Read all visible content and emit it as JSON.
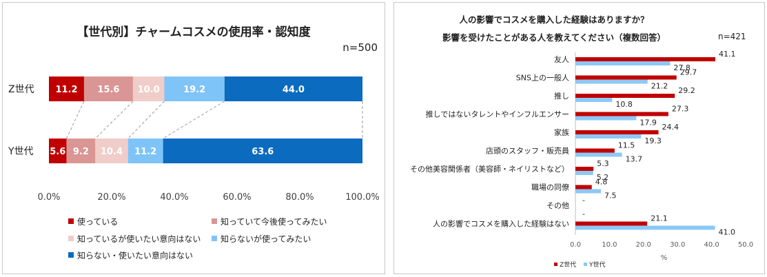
{
  "colors": {
    "z_series": "#C00000",
    "y_series": "#8DC8F5",
    "segments": [
      "#C00000",
      "#DA9694",
      "#F0CDC9",
      "#7FC4F8",
      "#0B6BBF"
    ]
  },
  "left": {
    "title": "【世代別】チャームコスメの使用率・認知度",
    "n_label": "n=500"
  },
  "right": {
    "title_line1": "人の影響でコスメを購入した経験はありますか？",
    "title_line2": "影響を受けたことがある人を教えてください（複数回答）",
    "n_label": "n=421"
  },
  "chart_data": [
    {
      "type": "bar",
      "orientation": "horizontal",
      "stacked": true,
      "title": "【世代別】チャームコスメの使用率・認知度",
      "categories": [
        "Z世代",
        "Y世代"
      ],
      "series": [
        {
          "name": "使っている",
          "values": [
            11.2,
            5.6
          ]
        },
        {
          "name": "知っていて今後使ってみたい",
          "values": [
            15.6,
            9.2
          ]
        },
        {
          "name": "知っているが使いたい意向はない",
          "values": [
            10.0,
            10.4
          ]
        },
        {
          "name": "知らないが使ってみたい",
          "values": [
            19.2,
            11.2
          ]
        },
        {
          "name": "知らない・使いたい意向はない",
          "values": [
            44.0,
            63.6
          ]
        }
      ],
      "xlim": [
        0,
        100
      ],
      "xticks": [
        "0.0%",
        "20.0%",
        "40.0%",
        "60.0%",
        "80.0%",
        "100.0%"
      ],
      "legend_position": "bottom"
    },
    {
      "type": "bar",
      "orientation": "horizontal",
      "title": "人の影響でコスメを購入した経験はありますか？ 影響を受けたことがある人を教えてください（複数回答）",
      "categories": [
        "友人",
        "SNS上の一般人",
        "推し",
        "推しではないタレントやインフルエンサー",
        "家族",
        "店頭のスタッフ・販売員",
        "その他美容関係者（美容師・ネイリストなど）",
        "職場の同僚",
        "その他",
        "人の影響でコスメを購入した経験はない"
      ],
      "series": [
        {
          "name": "Z世代",
          "values": [
            41.1,
            29.7,
            29.2,
            27.3,
            24.4,
            11.5,
            5.3,
            4.8,
            null,
            21.1
          ],
          "labels": [
            "41.1",
            "29.7",
            "29.2",
            "27.3",
            "24.4",
            "11.5",
            "5.3",
            "4.8",
            "-",
            "21.1"
          ]
        },
        {
          "name": "Y世代",
          "values": [
            27.8,
            21.2,
            10.8,
            17.9,
            19.3,
            13.7,
            5.2,
            7.5,
            null,
            41.0
          ],
          "labels": [
            "27.8",
            "21.2",
            "10.8",
            "17.9",
            "19.3",
            "13.7",
            "5.2",
            "7.5",
            "-",
            "41.0"
          ]
        }
      ],
      "xlim": [
        0,
        50
      ],
      "xticks": [
        "0.0",
        "10.0",
        "20.0",
        "30.0",
        "40.0",
        "50.0"
      ],
      "xlabel": "%",
      "legend_position": "bottom-left"
    }
  ]
}
